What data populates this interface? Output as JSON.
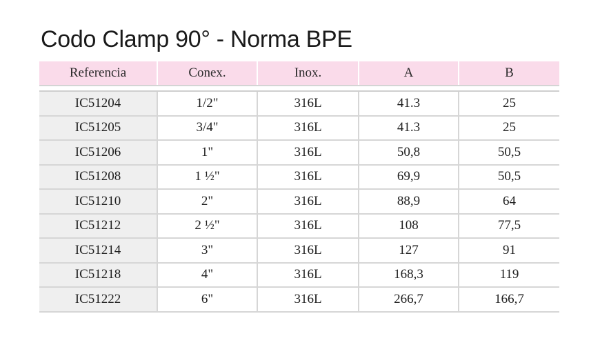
{
  "title": "Codo Clamp 90° - Norma BPE",
  "table": {
    "headers": [
      "Referencia",
      "Conex.",
      "Inox.",
      "A",
      "B"
    ],
    "rows": [
      [
        "IC51204",
        "1/2\"",
        "316L",
        "41.3",
        "25"
      ],
      [
        "IC51205",
        "3/4\"",
        "316L",
        "41.3",
        "25"
      ],
      [
        "IC51206",
        "1\"",
        "316L",
        "50,8",
        "50,5"
      ],
      [
        "IC51208",
        "1 ½\"",
        "316L",
        "69,9",
        "50,5"
      ],
      [
        "IC51210",
        "2\"",
        "316L",
        "88,9",
        "64"
      ],
      [
        "IC51212",
        "2 ½\"",
        "316L",
        "108",
        "77,5"
      ],
      [
        "IC51214",
        "3\"",
        "316L",
        "127",
        "91"
      ],
      [
        "IC51218",
        "4\"",
        "316L",
        "168,3",
        "119"
      ],
      [
        "IC51222",
        "6\"",
        "316L",
        "266,7",
        "166,7"
      ]
    ]
  },
  "colors": {
    "header_bg": "#fadbea",
    "reference_bg": "#efefef",
    "grid": "#d6d6d6"
  }
}
